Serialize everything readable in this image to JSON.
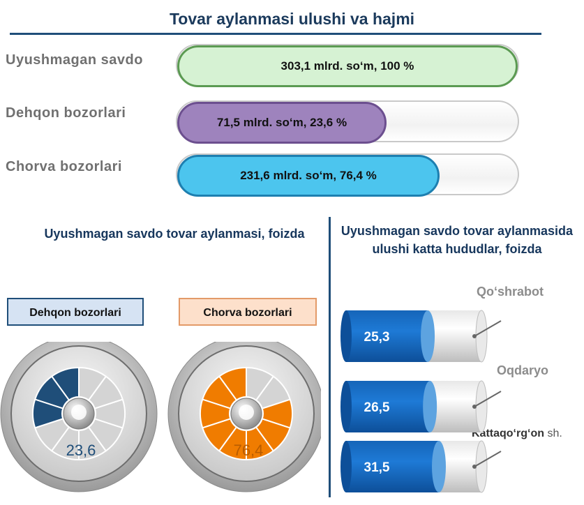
{
  "title": "Tovar aylanmasi ulushi va hajmi",
  "bars": [
    {
      "label": "Uyushmagan savdo",
      "value_text": "303,1 mlrd. so‘m, 100 %",
      "fraction": 1.0,
      "color": "#d6f2d3"
    },
    {
      "label": "Dehqon bozorlari",
      "value_text": "71,5 mlrd. so‘m,  23,6 %",
      "fraction": 0.236,
      "color": "#9e83bd"
    },
    {
      "label": "Chorva bozorlari",
      "value_text": "231,6 mlrd. so‘m, 76,4  %",
      "fraction": 0.764,
      "color": "#4cc5ee"
    }
  ],
  "left_panel": {
    "title": "Uyushmagan  savdo tovar aylanmasi, foizda",
    "gauges": [
      {
        "legend": "Dehqon bozorlari",
        "value_text": "23,6",
        "value": 23.6,
        "color": "#1f4e79",
        "legend_bg": "#d6e3f3",
        "value_color": "#1f4e79"
      },
      {
        "legend": "Chorva bozorlari",
        "value_text": "76,4",
        "value": 76.4,
        "color": "#f07c00",
        "legend_bg": "#fde0cb",
        "value_color": "#b85c00"
      }
    ]
  },
  "right_panel": {
    "title": "Uyushmagan savdo tovar aylanmasida ulushi katta hududlar, foizda",
    "regions": [
      {
        "name": "Qo‘shrabot",
        "value_text": "25,3",
        "value": 25.3
      },
      {
        "name": "Oqdaryo",
        "value_text": "26,5",
        "value": 26.5
      },
      {
        "name": "Kattaqo‘rg‘on",
        "suffix": " sh.",
        "value_text": "31,5",
        "value": 31.5
      }
    ]
  },
  "chart_data": [
    {
      "type": "bar",
      "title": "Tovar aylanmasi ulushi va hajmi",
      "categories": [
        "Uyushmagan savdo",
        "Dehqon bozorlari",
        "Chorva bozorlari"
      ],
      "values": [
        303.1,
        71.5,
        231.6
      ],
      "shares_percent": [
        100,
        23.6,
        76.4
      ]
    },
    {
      "type": "pie",
      "title": "Uyushmagan  savdo tovar aylanmasi, foizda",
      "categories": [
        "Dehqon bozorlari",
        "Chorva bozorlari"
      ],
      "values": [
        23.6,
        76.4
      ]
    },
    {
      "type": "bar",
      "title": "Uyushmagan savdo tovar aylanmasida ulushi katta hududlar, foizda",
      "categories": [
        "Qo‘shrabot",
        "Oqdaryo",
        "Kattaqo‘rg‘on sh."
      ],
      "values": [
        25.3,
        26.5,
        31.5
      ]
    }
  ]
}
